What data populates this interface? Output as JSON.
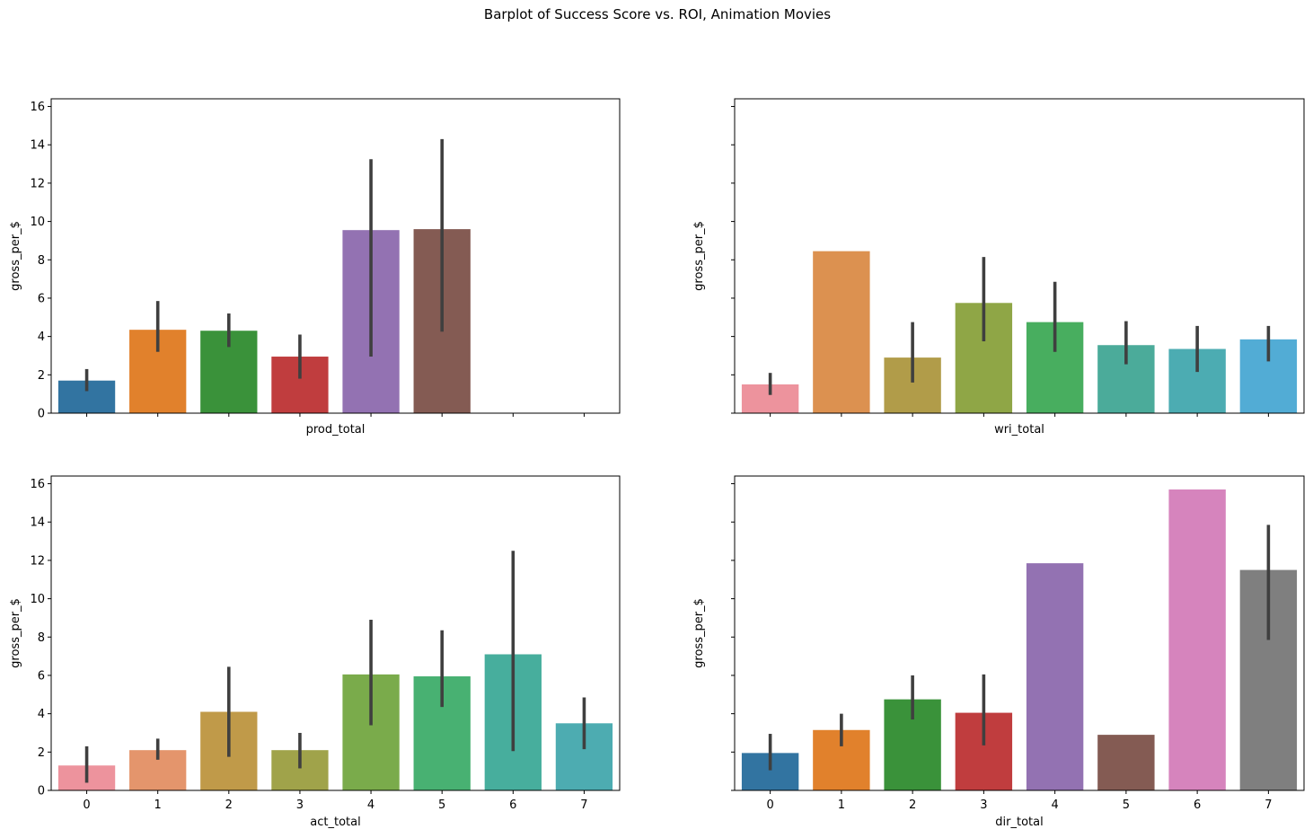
{
  "figure": {
    "title": "Barplot of Success Score vs. ROI, Animation Movies"
  },
  "chart_data": [
    {
      "type": "bar",
      "panel": "top-left",
      "xlabel": "prod_total",
      "ylabel": "gross_per_$",
      "categories": [
        "0",
        "1",
        "2",
        "3",
        "4",
        "5",
        "6",
        "7"
      ],
      "show_xticklabels": false,
      "show_yticklabels": true,
      "ylim": [
        0,
        16.4
      ],
      "yticks": [
        0,
        2,
        4,
        6,
        8,
        10,
        12,
        14,
        16
      ],
      "values": [
        1.7,
        4.35,
        4.3,
        2.95,
        9.55,
        9.6,
        null,
        null
      ],
      "ci_low": [
        1.15,
        3.2,
        3.45,
        1.8,
        2.95,
        4.25,
        null,
        null
      ],
      "ci_high": [
        2.3,
        5.85,
        5.2,
        4.1,
        13.25,
        14.3,
        null,
        null
      ],
      "colors": [
        "#3274a1",
        "#e1812c",
        "#3a923a",
        "#c03d3e",
        "#9372b2",
        "#845b53",
        "#d684bd",
        "#7f7f7f"
      ]
    },
    {
      "type": "bar",
      "panel": "top-right",
      "xlabel": "wri_total",
      "ylabel": "gross_per_$",
      "categories": [
        "0",
        "1",
        "2",
        "3",
        "4",
        "5",
        "6",
        "7"
      ],
      "show_xticklabels": false,
      "show_yticklabels": false,
      "ylim": [
        0,
        16.4
      ],
      "yticks": [
        0,
        2,
        4,
        6,
        8,
        10,
        12,
        14,
        16
      ],
      "values": [
        1.5,
        8.45,
        2.9,
        5.75,
        4.75,
        3.55,
        3.35,
        3.85
      ],
      "ci_low": [
        0.95,
        null,
        1.6,
        3.75,
        3.2,
        2.55,
        2.15,
        2.7
      ],
      "ci_high": [
        2.1,
        null,
        4.75,
        8.15,
        6.85,
        4.8,
        4.55,
        4.55
      ],
      "colors": [
        "#ed939d",
        "#dc9150",
        "#b19c49",
        "#8fa646",
        "#48ae5f",
        "#4bab9a",
        "#4cacb2",
        "#52acd5"
      ]
    },
    {
      "type": "bar",
      "panel": "bottom-left",
      "xlabel": "act_total",
      "ylabel": "gross_per_$",
      "categories": [
        "0",
        "1",
        "2",
        "3",
        "4",
        "5",
        "6",
        "7"
      ],
      "show_xticklabels": true,
      "show_yticklabels": true,
      "ylim": [
        0,
        16.4
      ],
      "yticks": [
        0,
        2,
        4,
        6,
        8,
        10,
        12,
        14,
        16
      ],
      "values": [
        1.3,
        2.1,
        4.1,
        2.1,
        6.05,
        5.95,
        7.1,
        3.5
      ],
      "ci_low": [
        0.4,
        1.6,
        1.75,
        1.15,
        3.4,
        4.35,
        2.05,
        2.15
      ],
      "ci_high": [
        2.3,
        2.7,
        6.45,
        3.0,
        8.9,
        8.35,
        12.5,
        4.85
      ],
      "colors": [
        "#ed939d",
        "#e4956c",
        "#c09a49",
        "#a0a34a",
        "#7aab4b",
        "#48b172",
        "#47ae9d",
        "#4dacb1"
      ]
    },
    {
      "type": "bar",
      "panel": "bottom-right",
      "xlabel": "dir_total",
      "ylabel": "gross_per_$",
      "categories": [
        "0",
        "1",
        "2",
        "3",
        "4",
        "5",
        "6",
        "7"
      ],
      "show_xticklabels": true,
      "show_yticklabels": false,
      "ylim": [
        0,
        16.4
      ],
      "yticks": [
        0,
        2,
        4,
        6,
        8,
        10,
        12,
        14,
        16
      ],
      "values": [
        1.95,
        3.15,
        4.75,
        4.05,
        11.85,
        2.9,
        15.7,
        11.5
      ],
      "ci_low": [
        1.05,
        2.3,
        3.7,
        2.35,
        null,
        null,
        null,
        7.85
      ],
      "ci_high": [
        2.95,
        4.0,
        6.0,
        6.05,
        null,
        null,
        null,
        13.85
      ],
      "colors": [
        "#3274a1",
        "#e1812c",
        "#3a923a",
        "#c03d3e",
        "#9372b2",
        "#845b53",
        "#d684bd",
        "#7f7f7f"
      ]
    }
  ]
}
